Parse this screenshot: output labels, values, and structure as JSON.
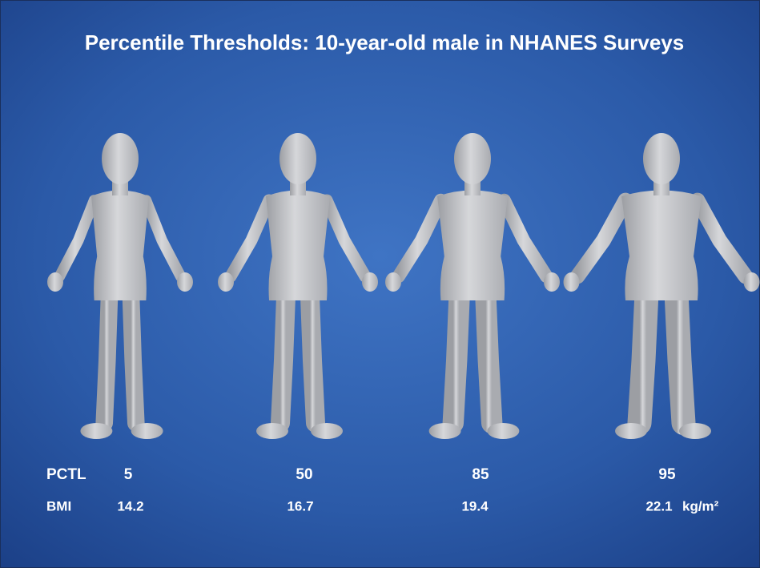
{
  "title": "Percentile Thresholds: 10-year-old male in NHANES Surveys",
  "row_labels": {
    "pctl": "PCTL",
    "bmi": "BMI"
  },
  "figures": [
    {
      "pctl": 5,
      "bmi": 14.2
    },
    {
      "pctl": 50,
      "bmi": 16.7
    },
    {
      "pctl": 85,
      "bmi": 19.4
    },
    {
      "pctl": 95,
      "bmi": 22.1
    }
  ],
  "bmi_unit": "kg/m²"
}
